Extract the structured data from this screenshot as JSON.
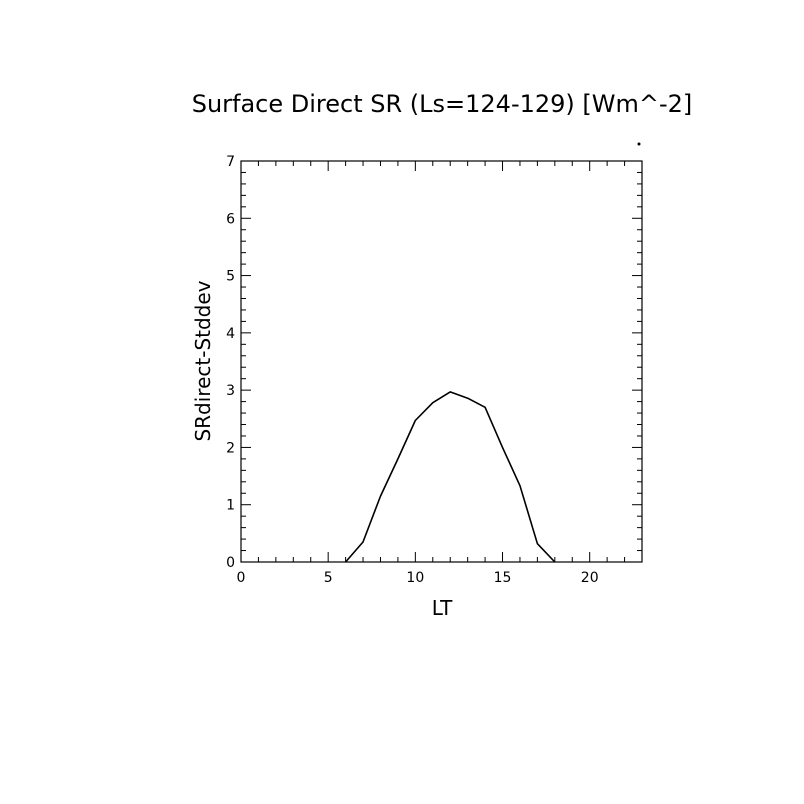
{
  "chart_data": {
    "type": "line",
    "title": "Surface Direct SR (Ls=124-129) [Wm^-2]",
    "xlabel": "LT",
    "ylabel": "SRdirect-Stddev",
    "xlim": [
      0,
      23
    ],
    "ylim": [
      0,
      7
    ],
    "x_ticks": [
      0,
      5,
      10,
      15,
      20
    ],
    "y_ticks": [
      0,
      1,
      2,
      3,
      4,
      5,
      6,
      7
    ],
    "x_tick_labels": [
      "0",
      "5",
      "10",
      "15",
      "20"
    ],
    "y_tick_labels": [
      "0",
      "1",
      "2",
      "3",
      "4",
      "5",
      "6",
      "7"
    ],
    "grid": false,
    "line_color": "#000000",
    "series": [
      {
        "x": [
          6,
          7,
          8,
          9,
          10,
          11,
          12,
          13,
          14,
          15,
          16,
          17,
          18
        ],
        "y": [
          0,
          0.35,
          1.15,
          1.8,
          2.47,
          2.78,
          2.97,
          2.86,
          2.7,
          2.0,
          1.33,
          0.32,
          0
        ]
      }
    ]
  }
}
